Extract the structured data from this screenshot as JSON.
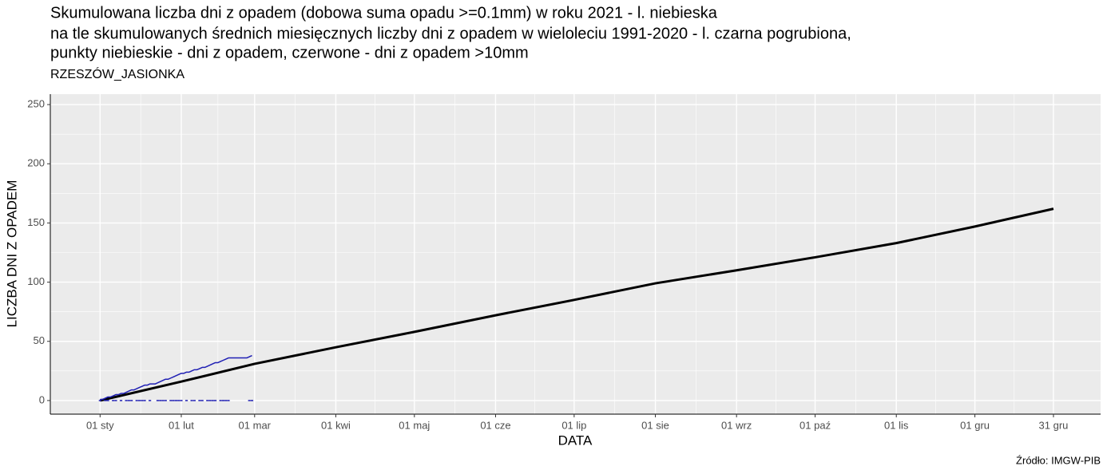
{
  "chart_data": {
    "type": "line",
    "title": [
      "Skumulowana liczba dni z opadem (dobowa suma opadu >=0.1mm) w roku 2021 - l. niebieska",
      "na tle skumulowanych średnich miesięcznych liczby dni z opadem w wieloleciu 1991-2020 - l. czarna pogrubiona,",
      "punkty niebieskie - dni z opadem, czerwone - dni z opadem >10mm"
    ],
    "subtitle": "RZESZÓW_JASIONKA",
    "x_label": "DATA",
    "y_label": "LICZBA DNI Z OPADEM",
    "caption": "Źródło: IMGW-PIB",
    "xlim": [
      "2020-12-13",
      "2022-01-18"
    ],
    "xticks": [
      {
        "value": "2021-01-01",
        "label": "01 sty"
      },
      {
        "value": "2021-02-01",
        "label": "01 lut"
      },
      {
        "value": "2021-03-01",
        "label": "01 mar"
      },
      {
        "value": "2021-04-01",
        "label": "01 kwi"
      },
      {
        "value": "2021-05-01",
        "label": "01 maj"
      },
      {
        "value": "2021-06-01",
        "label": "01 cze"
      },
      {
        "value": "2021-07-01",
        "label": "01 lip"
      },
      {
        "value": "2021-08-01",
        "label": "01 sie"
      },
      {
        "value": "2021-09-01",
        "label": "01 wrz"
      },
      {
        "value": "2021-10-01",
        "label": "01 paź"
      },
      {
        "value": "2021-11-01",
        "label": "01 lis"
      },
      {
        "value": "2021-12-01",
        "label": "01 gru"
      },
      {
        "value": "2021-12-31",
        "label": "31 gru"
      }
    ],
    "ylim": [
      -11.5,
      258.8
    ],
    "yticks": [
      0,
      50,
      100,
      150,
      200,
      250
    ],
    "grid": true,
    "series": [
      {
        "color": "#000000",
        "width": 3,
        "x": [
          "2021-01-01",
          "2021-02-01",
          "2021-03-01",
          "2021-04-01",
          "2021-05-01",
          "2021-06-01",
          "2021-07-01",
          "2021-08-01",
          "2021-09-01",
          "2021-10-01",
          "2021-11-01",
          "2021-12-01",
          "2021-12-31"
        ],
        "values": [
          0,
          16,
          31,
          45,
          58,
          72,
          85,
          99,
          110,
          121,
          133,
          147,
          162
        ]
      },
      {
        "color": "#1f1fb4",
        "width": 1.5,
        "x": [
          "2021-01-01",
          "2021-01-02",
          "2021-01-03",
          "2021-01-04",
          "2021-01-05",
          "2021-01-06",
          "2021-01-07",
          "2021-01-08",
          "2021-01-09",
          "2021-01-10",
          "2021-01-11",
          "2021-01-12",
          "2021-01-13",
          "2021-01-14",
          "2021-01-15",
          "2021-01-16",
          "2021-01-17",
          "2021-01-18",
          "2021-01-19",
          "2021-01-20",
          "2021-01-21",
          "2021-01-22",
          "2021-01-23",
          "2021-01-24",
          "2021-01-25",
          "2021-01-26",
          "2021-01-27",
          "2021-01-28",
          "2021-01-29",
          "2021-01-30",
          "2021-01-31",
          "2021-02-01",
          "2021-02-02",
          "2021-02-03",
          "2021-02-04",
          "2021-02-05",
          "2021-02-06",
          "2021-02-07",
          "2021-02-08",
          "2021-02-09",
          "2021-02-10",
          "2021-02-11",
          "2021-02-12",
          "2021-02-13",
          "2021-02-14",
          "2021-02-15",
          "2021-02-16",
          "2021-02-17",
          "2021-02-18",
          "2021-02-19",
          "2021-02-20",
          "2021-02-21",
          "2021-02-22",
          "2021-02-23",
          "2021-02-24",
          "2021-02-25",
          "2021-02-26",
          "2021-02-27",
          "2021-02-28"
        ],
        "values": [
          1,
          1,
          2,
          3,
          3,
          4,
          5,
          5,
          6,
          6,
          7,
          8,
          9,
          9,
          10,
          11,
          12,
          13,
          13,
          14,
          14,
          14,
          15,
          16,
          17,
          18,
          18,
          19,
          20,
          21,
          22,
          23,
          23,
          24,
          24,
          25,
          26,
          26,
          27,
          28,
          28,
          29,
          30,
          31,
          32,
          32,
          33,
          34,
          35,
          36,
          36,
          36,
          36,
          36,
          36,
          36,
          36,
          37,
          38
        ]
      },
      {
        "type": "scatter",
        "color": "#1f1fb4",
        "x": [
          "2021-01-01",
          "2021-01-03",
          "2021-01-04",
          "2021-01-06",
          "2021-01-07",
          "2021-01-09",
          "2021-01-11",
          "2021-01-12",
          "2021-01-13",
          "2021-01-15",
          "2021-01-16",
          "2021-01-17",
          "2021-01-18",
          "2021-01-20",
          "2021-01-23",
          "2021-01-24",
          "2021-01-25",
          "2021-01-26",
          "2021-01-28",
          "2021-01-29",
          "2021-01-30",
          "2021-01-31",
          "2021-02-01",
          "2021-02-03",
          "2021-02-05",
          "2021-02-06",
          "2021-02-08",
          "2021-02-09",
          "2021-02-11",
          "2021-02-12",
          "2021-02-13",
          "2021-02-14",
          "2021-02-16",
          "2021-02-17",
          "2021-02-18",
          "2021-02-19",
          "2021-02-27",
          "2021-02-28"
        ],
        "values": [
          0,
          0,
          0,
          0,
          0,
          0,
          0,
          0,
          0,
          0,
          0,
          0,
          0,
          0,
          0,
          0,
          0,
          0,
          0,
          0,
          0,
          0,
          0,
          0,
          0,
          0,
          0,
          0,
          0,
          0,
          0,
          0,
          0,
          0,
          0,
          0,
          0,
          0
        ]
      }
    ]
  }
}
